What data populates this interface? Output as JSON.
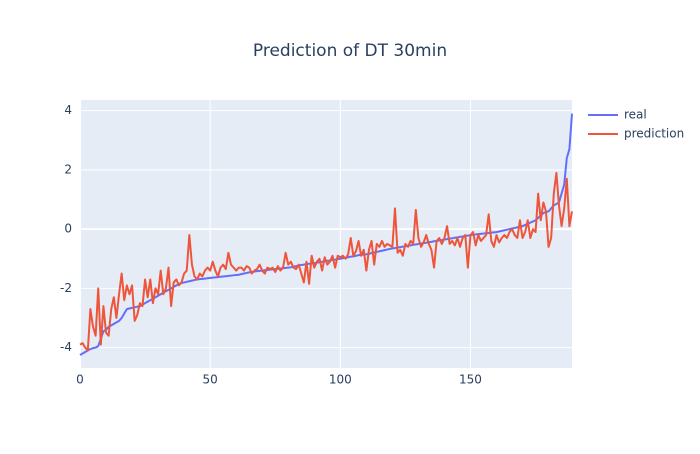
{
  "chart_data": {
    "type": "line",
    "title": "Prediction of DT 30min",
    "x": [
      0,
      1,
      2,
      3,
      4,
      5,
      6,
      7,
      8,
      9,
      10,
      11,
      12,
      13,
      14,
      15,
      16,
      17,
      18,
      19,
      20,
      21,
      22,
      23,
      24,
      25,
      26,
      27,
      28,
      29,
      30,
      31,
      32,
      33,
      34,
      35,
      36,
      37,
      38,
      39,
      40,
      41,
      42,
      43,
      44,
      45,
      46,
      47,
      48,
      49,
      50,
      51,
      52,
      53,
      54,
      55,
      56,
      57,
      58,
      59,
      60,
      61,
      62,
      63,
      64,
      65,
      66,
      67,
      68,
      69,
      70,
      71,
      72,
      73,
      74,
      75,
      76,
      77,
      78,
      79,
      80,
      81,
      82,
      83,
      84,
      85,
      86,
      87,
      88,
      89,
      90,
      91,
      92,
      93,
      94,
      95,
      96,
      97,
      98,
      99,
      100,
      101,
      102,
      103,
      104,
      105,
      106,
      107,
      108,
      109,
      110,
      111,
      112,
      113,
      114,
      115,
      116,
      117,
      118,
      119,
      120,
      121,
      122,
      123,
      124,
      125,
      126,
      127,
      128,
      129,
      130,
      131,
      132,
      133,
      134,
      135,
      136,
      137,
      138,
      139,
      140,
      141,
      142,
      143,
      144,
      145,
      146,
      147,
      148,
      149,
      150,
      151,
      152,
      153,
      154,
      155,
      156,
      157,
      158,
      159,
      160,
      161,
      162,
      163,
      164,
      165,
      166,
      167,
      168,
      169,
      170,
      171,
      172,
      173,
      174,
      175,
      176,
      177,
      178,
      179,
      180,
      181,
      182,
      183,
      184,
      185,
      186,
      187,
      188,
      189
    ],
    "series": [
      {
        "name": "real",
        "color": "#636efa",
        "values": [
          -4.25,
          -4.2,
          -4.15,
          -4.1,
          -4.05,
          -4.02,
          -4.0,
          -3.95,
          -3.7,
          -3.45,
          -3.4,
          -3.3,
          -3.25,
          -3.2,
          -3.15,
          -3.1,
          -3.0,
          -2.85,
          -2.7,
          -2.68,
          -2.66,
          -2.64,
          -2.62,
          -2.6,
          -2.55,
          -2.5,
          -2.45,
          -2.4,
          -2.35,
          -2.3,
          -2.25,
          -2.2,
          -2.15,
          -2.1,
          -2.05,
          -2.0,
          -1.95,
          -1.9,
          -1.85,
          -1.82,
          -1.8,
          -1.78,
          -1.76,
          -1.74,
          -1.72,
          -1.7,
          -1.69,
          -1.68,
          -1.67,
          -1.66,
          -1.65,
          -1.64,
          -1.63,
          -1.62,
          -1.61,
          -1.6,
          -1.59,
          -1.58,
          -1.57,
          -1.56,
          -1.55,
          -1.54,
          -1.52,
          -1.5,
          -1.48,
          -1.46,
          -1.45,
          -1.43,
          -1.42,
          -1.41,
          -1.4,
          -1.39,
          -1.38,
          -1.37,
          -1.36,
          -1.35,
          -1.34,
          -1.33,
          -1.32,
          -1.31,
          -1.3,
          -1.29,
          -1.27,
          -1.25,
          -1.23,
          -1.21,
          -1.2,
          -1.18,
          -1.17,
          -1.16,
          -1.15,
          -1.13,
          -1.12,
          -1.1,
          -1.09,
          -1.07,
          -1.06,
          -1.04,
          -1.03,
          -1.01,
          -1.0,
          -0.98,
          -0.97,
          -0.95,
          -0.93,
          -0.92,
          -0.9,
          -0.88,
          -0.87,
          -0.86,
          -0.85,
          -0.83,
          -0.81,
          -0.79,
          -0.77,
          -0.75,
          -0.73,
          -0.71,
          -0.69,
          -0.67,
          -0.65,
          -0.64,
          -0.62,
          -0.61,
          -0.59,
          -0.58,
          -0.56,
          -0.55,
          -0.53,
          -0.52,
          -0.5,
          -0.49,
          -0.47,
          -0.46,
          -0.44,
          -0.43,
          -0.41,
          -0.4,
          -0.38,
          -0.37,
          -0.35,
          -0.34,
          -0.32,
          -0.31,
          -0.29,
          -0.28,
          -0.26,
          -0.25,
          -0.23,
          -0.22,
          -0.2,
          -0.19,
          -0.18,
          -0.17,
          -0.16,
          -0.15,
          -0.14,
          -0.13,
          -0.12,
          -0.11,
          -0.1,
          -0.08,
          -0.06,
          -0.04,
          -0.02,
          0.0,
          0.02,
          0.04,
          0.06,
          0.08,
          0.1,
          0.14,
          0.18,
          0.22,
          0.26,
          0.3,
          0.38,
          0.46,
          0.54,
          0.58,
          0.6,
          0.7,
          0.8,
          0.85,
          0.9,
          1.2,
          1.5,
          2.4,
          2.7,
          3.9
        ]
      },
      {
        "name": "prediction",
        "color": "#EF553B",
        "values": [
          -3.9,
          -3.85,
          -4.0,
          -4.1,
          -2.7,
          -3.3,
          -3.6,
          -2.0,
          -3.9,
          -2.6,
          -3.5,
          -3.6,
          -2.7,
          -2.3,
          -3.0,
          -2.2,
          -1.5,
          -2.4,
          -1.9,
          -2.2,
          -1.9,
          -3.1,
          -2.9,
          -2.5,
          -2.6,
          -1.7,
          -2.3,
          -1.7,
          -2.5,
          -2.0,
          -2.2,
          -1.4,
          -2.2,
          -2.0,
          -1.3,
          -2.6,
          -1.8,
          -1.7,
          -1.9,
          -1.8,
          -1.5,
          -1.4,
          -0.2,
          -1.2,
          -1.6,
          -1.7,
          -1.5,
          -1.6,
          -1.4,
          -1.3,
          -1.4,
          -1.1,
          -1.4,
          -1.6,
          -1.3,
          -1.2,
          -1.35,
          -0.8,
          -1.2,
          -1.3,
          -1.4,
          -1.3,
          -1.3,
          -1.4,
          -1.25,
          -1.3,
          -1.5,
          -1.4,
          -1.35,
          -1.2,
          -1.4,
          -1.5,
          -1.3,
          -1.35,
          -1.3,
          -1.45,
          -1.25,
          -1.4,
          -1.3,
          -0.8,
          -1.2,
          -1.1,
          -1.3,
          -1.35,
          -1.2,
          -1.5,
          -1.8,
          -1.1,
          -1.85,
          -0.9,
          -1.3,
          -1.1,
          -1.0,
          -1.4,
          -0.95,
          -1.2,
          -1.1,
          -0.9,
          -1.3,
          -0.9,
          -0.95,
          -0.9,
          -1.0,
          -0.85,
          -0.3,
          -0.9,
          -0.75,
          -0.4,
          -0.9,
          -0.7,
          -1.4,
          -0.7,
          -0.4,
          -1.2,
          -0.5,
          -0.6,
          -0.4,
          -0.6,
          -0.5,
          -0.55,
          -0.6,
          0.7,
          -0.8,
          -0.7,
          -0.9,
          -0.5,
          -0.6,
          -0.4,
          -0.5,
          0.65,
          -0.3,
          -0.6,
          -0.45,
          -0.2,
          -0.5,
          -0.7,
          -1.3,
          -0.4,
          -0.3,
          -0.5,
          -0.3,
          0.1,
          -0.5,
          -0.4,
          -0.55,
          -0.3,
          -0.6,
          -0.3,
          -0.2,
          -1.3,
          -0.2,
          -0.1,
          -0.55,
          -0.2,
          -0.4,
          -0.3,
          -0.2,
          0.5,
          -0.4,
          -0.6,
          -0.2,
          -0.45,
          -0.3,
          -0.2,
          -0.3,
          -0.1,
          0.0,
          -0.2,
          -0.3,
          0.3,
          -0.3,
          -0.1,
          0.3,
          -0.3,
          0.0,
          -0.1,
          1.2,
          0.3,
          0.9,
          0.6,
          -0.6,
          -0.3,
          1.2,
          1.9,
          0.8,
          0.1,
          0.7,
          1.7,
          0.1,
          0.6
        ]
      }
    ],
    "xlim": [
      0,
      189
    ],
    "xticks": [
      0,
      50,
      100,
      150
    ],
    "ylim": [
      -4.69,
      4.36
    ],
    "yticks": [
      -4,
      -2,
      0,
      2,
      4
    ],
    "grid": true,
    "legend_position": "right"
  }
}
